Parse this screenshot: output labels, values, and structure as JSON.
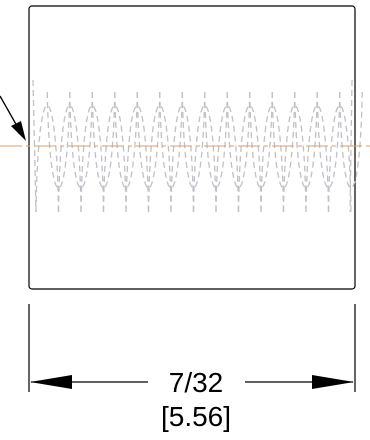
{
  "dimension": {
    "fraction": "7/32",
    "metric": "[5.56]"
  },
  "colors": {
    "outline": "#000000",
    "thread_hidden": "#c0c0c8",
    "centerline": "#d4a070"
  }
}
